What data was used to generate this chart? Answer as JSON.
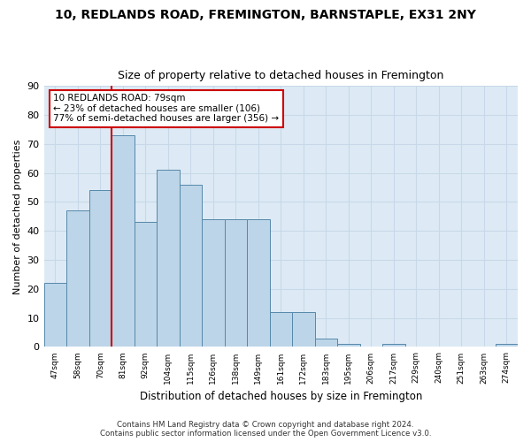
{
  "title1": "10, REDLANDS ROAD, FREMINGTON, BARNSTAPLE, EX31 2NY",
  "title2": "Size of property relative to detached houses in Fremington",
  "xlabel": "Distribution of detached houses by size in Fremington",
  "ylabel": "Number of detached properties",
  "categories": [
    "47sqm",
    "58sqm",
    "70sqm",
    "81sqm",
    "92sqm",
    "104sqm",
    "115sqm",
    "126sqm",
    "138sqm",
    "149sqm",
    "161sqm",
    "172sqm",
    "183sqm",
    "195sqm",
    "206sqm",
    "217sqm",
    "229sqm",
    "240sqm",
    "251sqm",
    "263sqm",
    "274sqm"
  ],
  "values": [
    22,
    47,
    54,
    73,
    43,
    61,
    56,
    44,
    44,
    44,
    12,
    12,
    3,
    1,
    0,
    1,
    0,
    0,
    0,
    0,
    1
  ],
  "bar_color": "#bdd5e8",
  "bar_edge_color": "#5588aa",
  "vline_x_idx": 3,
  "vline_color": "#cc0000",
  "annotation_text": "10 REDLANDS ROAD: 79sqm\n← 23% of detached houses are smaller (106)\n77% of semi-detached houses are larger (356) →",
  "annotation_box_color": "#ffffff",
  "annotation_box_edge": "#cc0000",
  "ylim": [
    0,
    90
  ],
  "yticks": [
    0,
    10,
    20,
    30,
    40,
    50,
    60,
    70,
    80,
    90
  ],
  "grid_color": "#c8d8e8",
  "background_color": "#ddeaf5",
  "fig_background": "#ffffff",
  "footer": "Contains HM Land Registry data © Crown copyright and database right 2024.\nContains public sector information licensed under the Open Government Licence v3.0."
}
